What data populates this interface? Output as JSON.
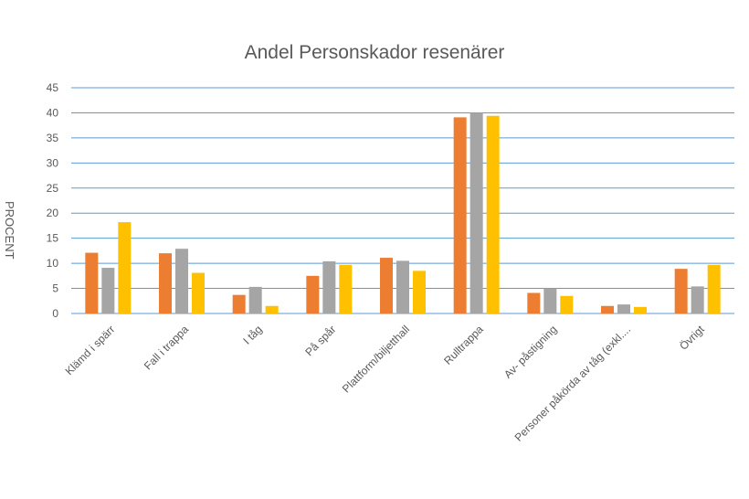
{
  "chart_data": {
    "type": "bar",
    "title": "Andel Personskador resenärer",
    "xlabel": "",
    "ylabel": "PROCENT",
    "ylim": [
      0,
      45
    ],
    "yticks": [
      0,
      5,
      10,
      15,
      20,
      25,
      30,
      35,
      40,
      45
    ],
    "grid": true,
    "legend": "none",
    "categories": [
      "Klämd i spärr",
      "Fall i trappa",
      "I tåg",
      "På spår",
      "Plattform/biljetthall",
      "Rulltrappa",
      "Av- påstigning",
      "Personer påkörda av tåg (exkl....",
      "Övrigt"
    ],
    "series": [
      {
        "color": "#ED7D31",
        "values": [
          12.1,
          12.0,
          3.7,
          7.5,
          11.1,
          39.1,
          4.1,
          1.5,
          8.9
        ]
      },
      {
        "color": "#A5A5A5",
        "values": [
          9.1,
          12.9,
          5.3,
          10.4,
          10.5,
          40.0,
          5.0,
          1.8,
          5.4
        ]
      },
      {
        "color": "#FFC000",
        "values": [
          18.2,
          8.1,
          1.5,
          9.7,
          8.5,
          39.4,
          3.5,
          1.3,
          9.7
        ]
      }
    ],
    "gridline_color": "#5B9BD5"
  }
}
